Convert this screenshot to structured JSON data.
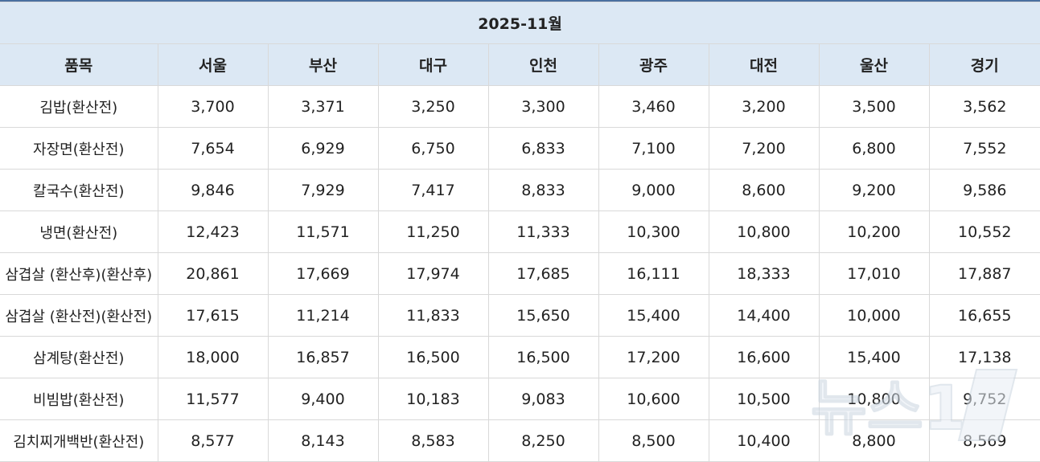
{
  "table": {
    "period": "2025-11월",
    "headers": [
      "품목",
      "서울",
      "부산",
      "대구",
      "인천",
      "광주",
      "대전",
      "울산",
      "경기"
    ],
    "rows": [
      {
        "item": "김밥(환산전)",
        "values": [
          "3,700",
          "3,371",
          "3,250",
          "3,300",
          "3,460",
          "3,200",
          "3,500",
          "3,562"
        ]
      },
      {
        "item": "자장면(환산전)",
        "values": [
          "7,654",
          "6,929",
          "6,750",
          "6,833",
          "7,100",
          "7,200",
          "6,800",
          "7,552"
        ]
      },
      {
        "item": "칼국수(환산전)",
        "values": [
          "9,846",
          "7,929",
          "7,417",
          "8,833",
          "9,000",
          "8,600",
          "9,200",
          "9,586"
        ]
      },
      {
        "item": "냉면(환산전)",
        "values": [
          "12,423",
          "11,571",
          "11,250",
          "11,333",
          "10,300",
          "10,800",
          "10,200",
          "10,552"
        ]
      },
      {
        "item": "삼겹살 (환산후)(환산후)",
        "values": [
          "20,861",
          "17,669",
          "17,974",
          "17,685",
          "16,111",
          "18,333",
          "17,010",
          "17,887"
        ]
      },
      {
        "item": "삼겹살 (환산전)(환산전)",
        "values": [
          "17,615",
          "11,214",
          "11,833",
          "15,650",
          "15,400",
          "14,400",
          "10,000",
          "16,655"
        ]
      },
      {
        "item": "삼계탕(환산전)",
        "values": [
          "18,000",
          "16,857",
          "16,500",
          "16,500",
          "17,200",
          "16,600",
          "15,400",
          "17,138"
        ]
      },
      {
        "item": "비빔밥(환산전)",
        "values": [
          "11,577",
          "9,400",
          "10,183",
          "9,083",
          "10,600",
          "10,500",
          "10,800",
          "9,752"
        ]
      },
      {
        "item": "김치찌개백반(환산전)",
        "values": [
          "8,577",
          "8,143",
          "8,583",
          "8,250",
          "8,500",
          "10,400",
          "8,800",
          "8,569"
        ]
      }
    ]
  },
  "watermark": {
    "text": "뉴스1"
  }
}
